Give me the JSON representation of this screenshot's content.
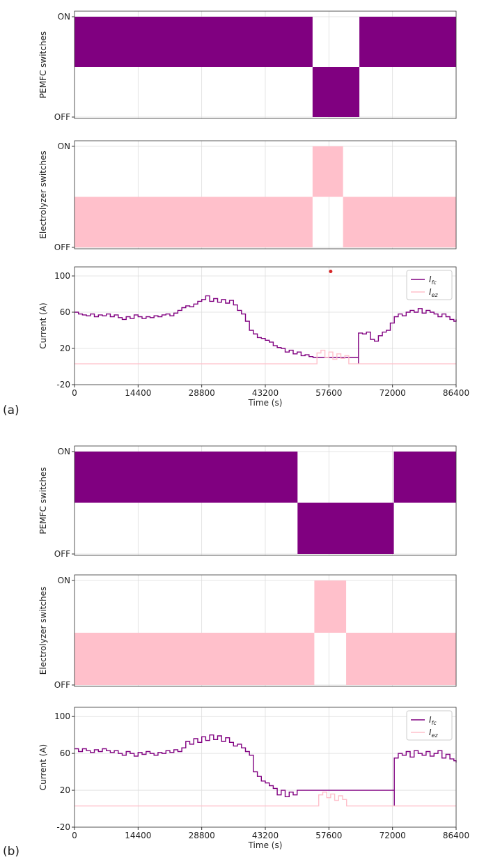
{
  "figure": {
    "panels": [
      {
        "label": "(a)",
        "chart_index": 0
      },
      {
        "label": "(b)",
        "chart_index": 1
      }
    ]
  },
  "chart_data": [
    {
      "type": "area",
      "panel": "(a)",
      "ylabel": "PEMFC switches",
      "ytick_labels": [
        "OFF",
        "ON"
      ],
      "x_range": [
        0,
        86400
      ],
      "color": "#800080",
      "states": [
        {
          "x0": 0,
          "x1": 53900,
          "on": true
        },
        {
          "x0": 53900,
          "x1": 64500,
          "on": false
        },
        {
          "x0": 64500,
          "x1": 86400,
          "on": true
        }
      ]
    },
    {
      "type": "area",
      "panel": "(a)",
      "ylabel": "Electrolyzer switches",
      "ytick_labels": [
        "OFF",
        "ON"
      ],
      "x_range": [
        0,
        86400
      ],
      "color": "#ffc0cb",
      "states": [
        {
          "x0": 0,
          "x1": 53900,
          "on": false
        },
        {
          "x0": 53900,
          "x1": 60800,
          "on": true
        },
        {
          "x0": 60800,
          "x1": 86400,
          "on": false
        }
      ]
    },
    {
      "type": "line",
      "panel": "(a)",
      "xlabel": "Time (s)",
      "ylabel": "Current (A)",
      "xlim": [
        0,
        86400
      ],
      "ylim": [
        -20,
        110
      ],
      "xticks": [
        0,
        14400,
        28800,
        43200,
        57600,
        72000,
        86400
      ],
      "yticks": [
        -20,
        20,
        60,
        100
      ],
      "legend": "top-right",
      "legend_entries": [
        {
          "label": "I",
          "sub": "fc",
          "color": "#800080"
        },
        {
          "label": "I",
          "sub": "ez",
          "color": "#ffc0cb"
        }
      ],
      "marker": {
        "x": 58000,
        "y": 105,
        "color": "#d62728"
      },
      "series": [
        {
          "label": "I",
          "sub": "fc",
          "color": "#800080",
          "x": [
            0,
            900,
            1800,
            2700,
            3600,
            4500,
            5400,
            6300,
            7200,
            8100,
            9000,
            9900,
            10800,
            11700,
            12600,
            13500,
            14400,
            15300,
            16200,
            17100,
            18000,
            18900,
            19800,
            20700,
            21600,
            22500,
            23400,
            24300,
            25200,
            26100,
            27000,
            27900,
            28800,
            29700,
            30600,
            31500,
            32400,
            33300,
            34200,
            35100,
            36000,
            36900,
            37800,
            38700,
            39600,
            40500,
            41400,
            42300,
            43200,
            44100,
            45000,
            45900,
            46800,
            47700,
            48600,
            49500,
            50400,
            51300,
            52200,
            53100,
            54000,
            64300,
            64301,
            65200,
            66100,
            67000,
            67900,
            68800,
            69700,
            70600,
            71500,
            72400,
            73300,
            74200,
            75100,
            76000,
            76900,
            77800,
            78700,
            79600,
            80500,
            81400,
            82300,
            83200,
            84100,
            85000,
            85900,
            86400
          ],
          "y": [
            60,
            58,
            57,
            56,
            58,
            55,
            57,
            56,
            58,
            55,
            57,
            54,
            52,
            55,
            53,
            57,
            55,
            53,
            55,
            54,
            56,
            55,
            57,
            58,
            56,
            59,
            62,
            65,
            67,
            66,
            69,
            72,
            74,
            78,
            72,
            75,
            71,
            74,
            70,
            73,
            68,
            62,
            58,
            50,
            40,
            36,
            32,
            31,
            29,
            27,
            23,
            21,
            20,
            16,
            18,
            14,
            16,
            12,
            13,
            11,
            10,
            3,
            37,
            36,
            38,
            30,
            28,
            34,
            38,
            40,
            48,
            55,
            58,
            56,
            60,
            62,
            60,
            64,
            59,
            62,
            60,
            58,
            55,
            58,
            55,
            52,
            50,
            52
          ]
        },
        {
          "label": "I",
          "sub": "ez",
          "color": "#ffc0cb",
          "x": [
            0,
            54000,
            54900,
            55800,
            56700,
            57600,
            58500,
            59400,
            60300,
            61200,
            62100,
            86400
          ],
          "y": [
            3,
            3,
            15,
            18,
            10,
            16,
            8,
            14,
            9,
            12,
            3,
            3
          ]
        }
      ]
    },
    {
      "type": "area",
      "panel": "(b)",
      "ylabel": "PEMFC switches",
      "ytick_labels": [
        "OFF",
        "ON"
      ],
      "x_range": [
        0,
        86400
      ],
      "color": "#800080",
      "states": [
        {
          "x0": 0,
          "x1": 50500,
          "on": true
        },
        {
          "x0": 50500,
          "x1": 72300,
          "on": false
        },
        {
          "x0": 72300,
          "x1": 86400,
          "on": true
        }
      ]
    },
    {
      "type": "area",
      "panel": "(b)",
      "ylabel": "Electrolyzer switches",
      "ytick_labels": [
        "OFF",
        "ON"
      ],
      "x_range": [
        0,
        86400
      ],
      "color": "#ffc0cb",
      "states": [
        {
          "x0": 0,
          "x1": 54300,
          "on": false
        },
        {
          "x0": 54300,
          "x1": 61500,
          "on": true
        },
        {
          "x0": 61500,
          "x1": 86400,
          "on": false
        }
      ]
    },
    {
      "type": "line",
      "panel": "(b)",
      "xlabel": "Time (s)",
      "ylabel": "Current (A)",
      "xlim": [
        0,
        86400
      ],
      "ylim": [
        -20,
        110
      ],
      "xticks": [
        0,
        14400,
        28800,
        43200,
        57600,
        72000,
        86400
      ],
      "yticks": [
        -20,
        20,
        60,
        100
      ],
      "legend": "top-right",
      "legend_entries": [
        {
          "label": "I",
          "sub": "fc",
          "color": "#800080"
        },
        {
          "label": "I",
          "sub": "ez",
          "color": "#ffc0cb"
        }
      ],
      "series": [
        {
          "label": "I",
          "sub": "fc",
          "color": "#800080",
          "x": [
            0,
            900,
            1800,
            2700,
            3600,
            4500,
            5400,
            6300,
            7200,
            8100,
            9000,
            9900,
            10800,
            11700,
            12600,
            13500,
            14400,
            15300,
            16200,
            17100,
            18000,
            18900,
            19800,
            20700,
            21600,
            22500,
            23400,
            24300,
            25200,
            26100,
            27000,
            27900,
            28800,
            29700,
            30600,
            31500,
            32400,
            33300,
            34200,
            35100,
            36000,
            36900,
            37800,
            38700,
            39600,
            40500,
            41400,
            42300,
            43200,
            44100,
            45000,
            45900,
            46800,
            47700,
            48600,
            49500,
            50400,
            72400,
            72401,
            73300,
            74200,
            75100,
            76000,
            76900,
            77800,
            78700,
            79600,
            80500,
            81400,
            82300,
            83200,
            84100,
            85000,
            85900,
            86400
          ],
          "y": [
            65,
            62,
            65,
            63,
            61,
            64,
            62,
            65,
            63,
            61,
            63,
            60,
            58,
            62,
            60,
            57,
            61,
            59,
            62,
            60,
            58,
            61,
            60,
            63,
            61,
            64,
            62,
            66,
            73,
            70,
            76,
            72,
            78,
            74,
            80,
            75,
            79,
            73,
            77,
            72,
            68,
            70,
            66,
            62,
            58,
            40,
            35,
            30,
            28,
            25,
            22,
            15,
            20,
            13,
            18,
            15,
            20,
            3,
            55,
            60,
            58,
            62,
            56,
            63,
            60,
            58,
            62,
            57,
            60,
            63,
            55,
            59,
            54,
            52,
            50
          ]
        },
        {
          "label": "I",
          "sub": "ez",
          "color": "#ffc0cb",
          "x": [
            0,
            54400,
            55300,
            56200,
            57100,
            58000,
            58900,
            59800,
            60700,
            61600,
            86400
          ],
          "y": [
            3,
            3,
            15,
            18,
            12,
            16,
            9,
            14,
            10,
            3,
            3
          ]
        }
      ]
    }
  ]
}
